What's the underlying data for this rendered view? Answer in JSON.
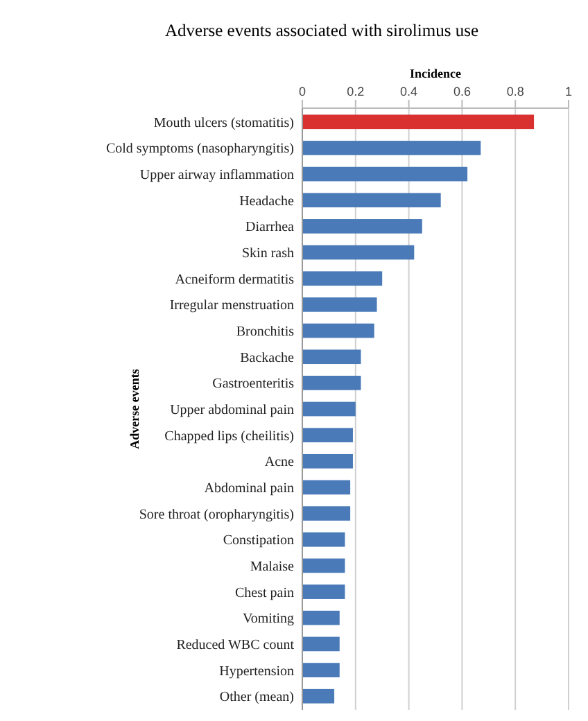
{
  "chart_data": {
    "type": "bar",
    "orientation": "horizontal",
    "title": "Adverse events associated with sirolimus use",
    "xlabel": "Incidence",
    "ylabel": "Adverse events",
    "categories": [
      "Mouth ulcers (stomatitis)",
      "Cold symptoms (nasopharyngitis)",
      "Upper airway inflammation",
      "Headache",
      "Diarrhea",
      "Skin rash",
      "Acneiform dermatitis",
      "Irregular menstruation",
      "Bronchitis",
      "Backache",
      "Gastroenteritis",
      "Upper abdominal pain",
      "Chapped lips (cheilitis)",
      "Acne",
      "Abdominal pain",
      "Sore throat (oropharyngitis)",
      "Constipation",
      "Malaise",
      "Chest pain",
      "Vomiting",
      "Reduced WBC count",
      "Hypertension",
      "Other (mean)"
    ],
    "values": [
      0.87,
      0.67,
      0.62,
      0.52,
      0.45,
      0.42,
      0.3,
      0.28,
      0.27,
      0.22,
      0.22,
      0.2,
      0.19,
      0.19,
      0.18,
      0.18,
      0.16,
      0.16,
      0.16,
      0.14,
      0.14,
      0.14,
      0.12
    ],
    "colors": [
      "#d93030",
      "#4a7ab8",
      "#4a7ab8",
      "#4a7ab8",
      "#4a7ab8",
      "#4a7ab8",
      "#4a7ab8",
      "#4a7ab8",
      "#4a7ab8",
      "#4a7ab8",
      "#4a7ab8",
      "#4a7ab8",
      "#4a7ab8",
      "#4a7ab8",
      "#4a7ab8",
      "#4a7ab8",
      "#4a7ab8",
      "#4a7ab8",
      "#4a7ab8",
      "#4a7ab8",
      "#4a7ab8",
      "#4a7ab8",
      "#4a7ab8"
    ],
    "xlim": [
      0,
      1
    ],
    "xticks": [
      0,
      0.2,
      0.4,
      0.6,
      0.8,
      1
    ],
    "grid": "x"
  }
}
